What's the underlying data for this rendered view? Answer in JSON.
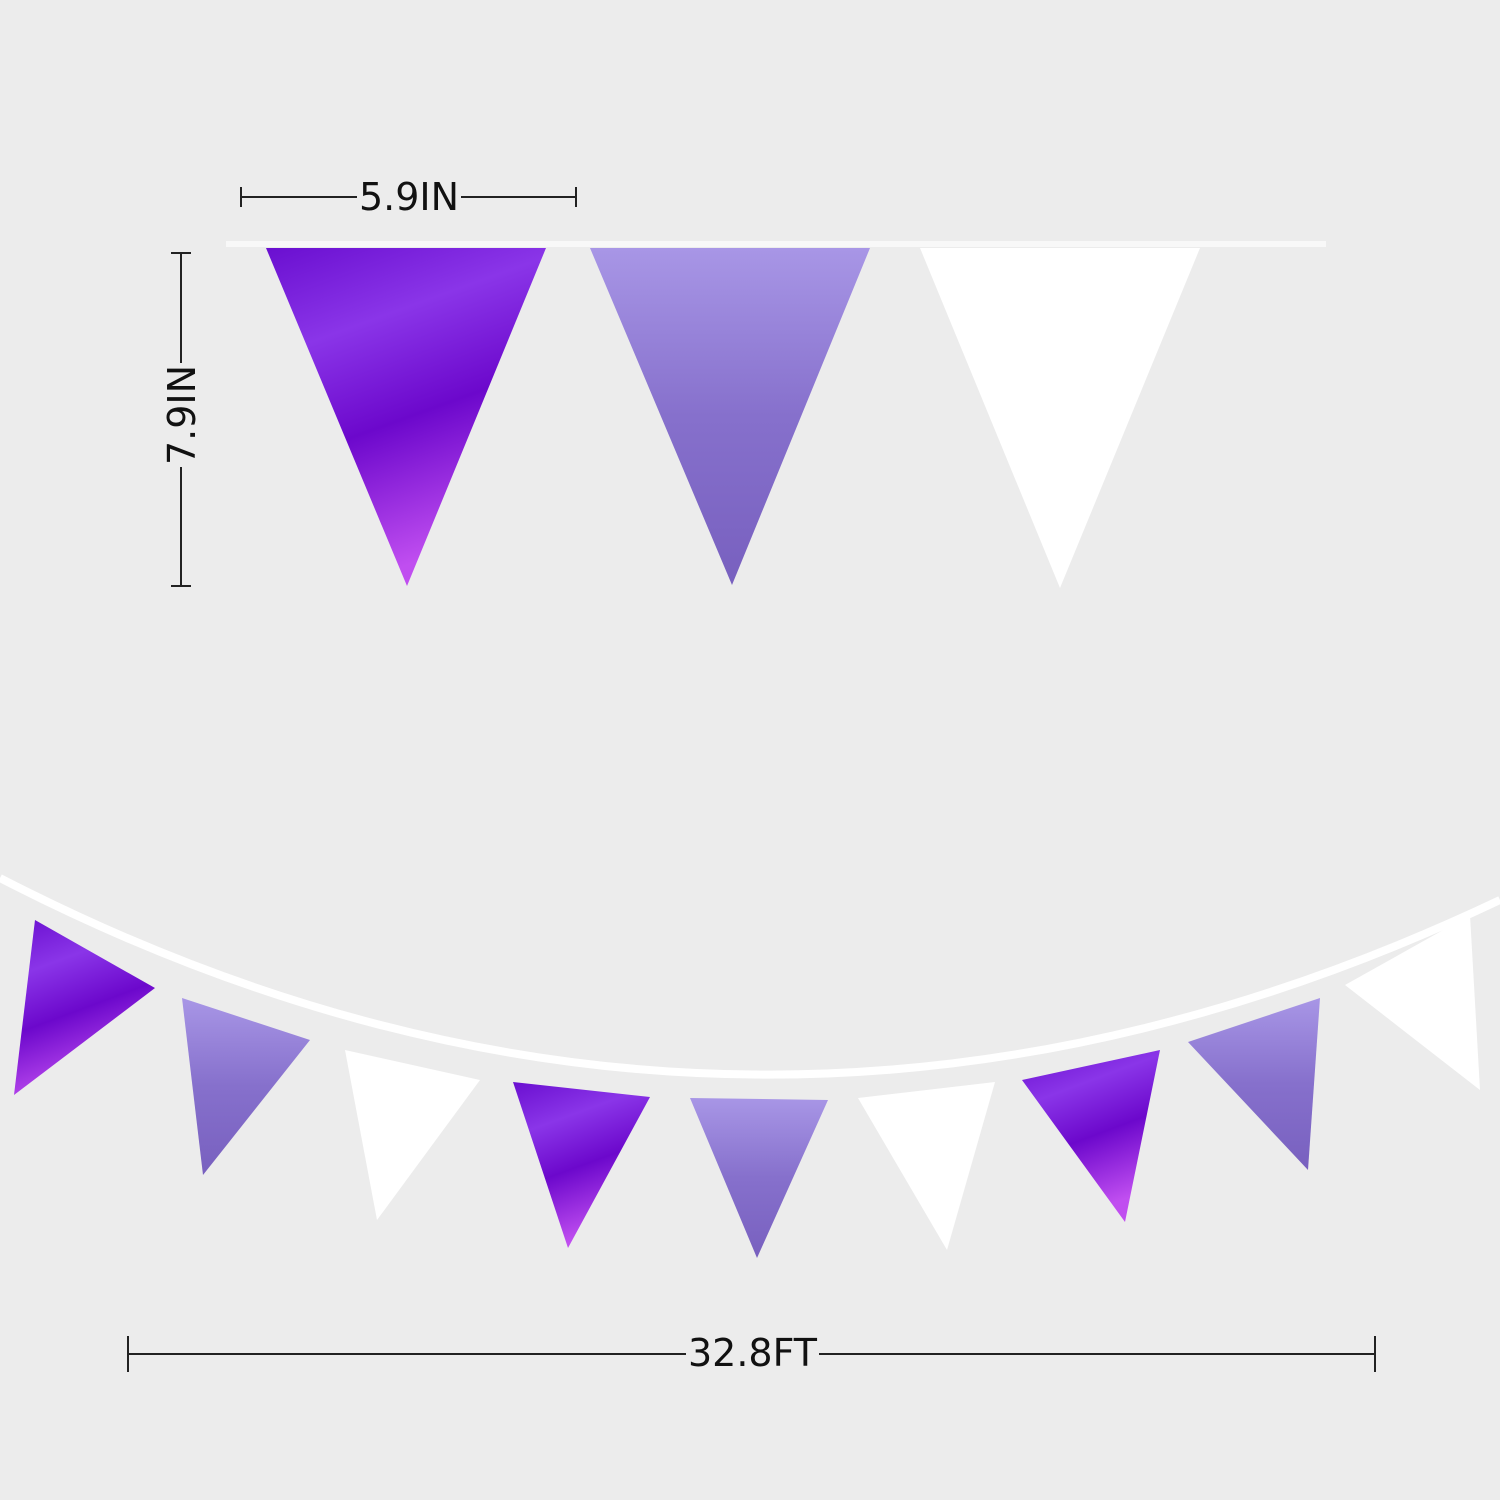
{
  "measurements": {
    "width_label": "5.9IN",
    "height_label": "7.9IN",
    "length_label": "32.8FT"
  },
  "colors": {
    "background": "#ececec",
    "metallic_purple": "#7a10d8",
    "lavender": "#8a72cf",
    "white": "#ffffff",
    "string": "#ffffff"
  }
}
